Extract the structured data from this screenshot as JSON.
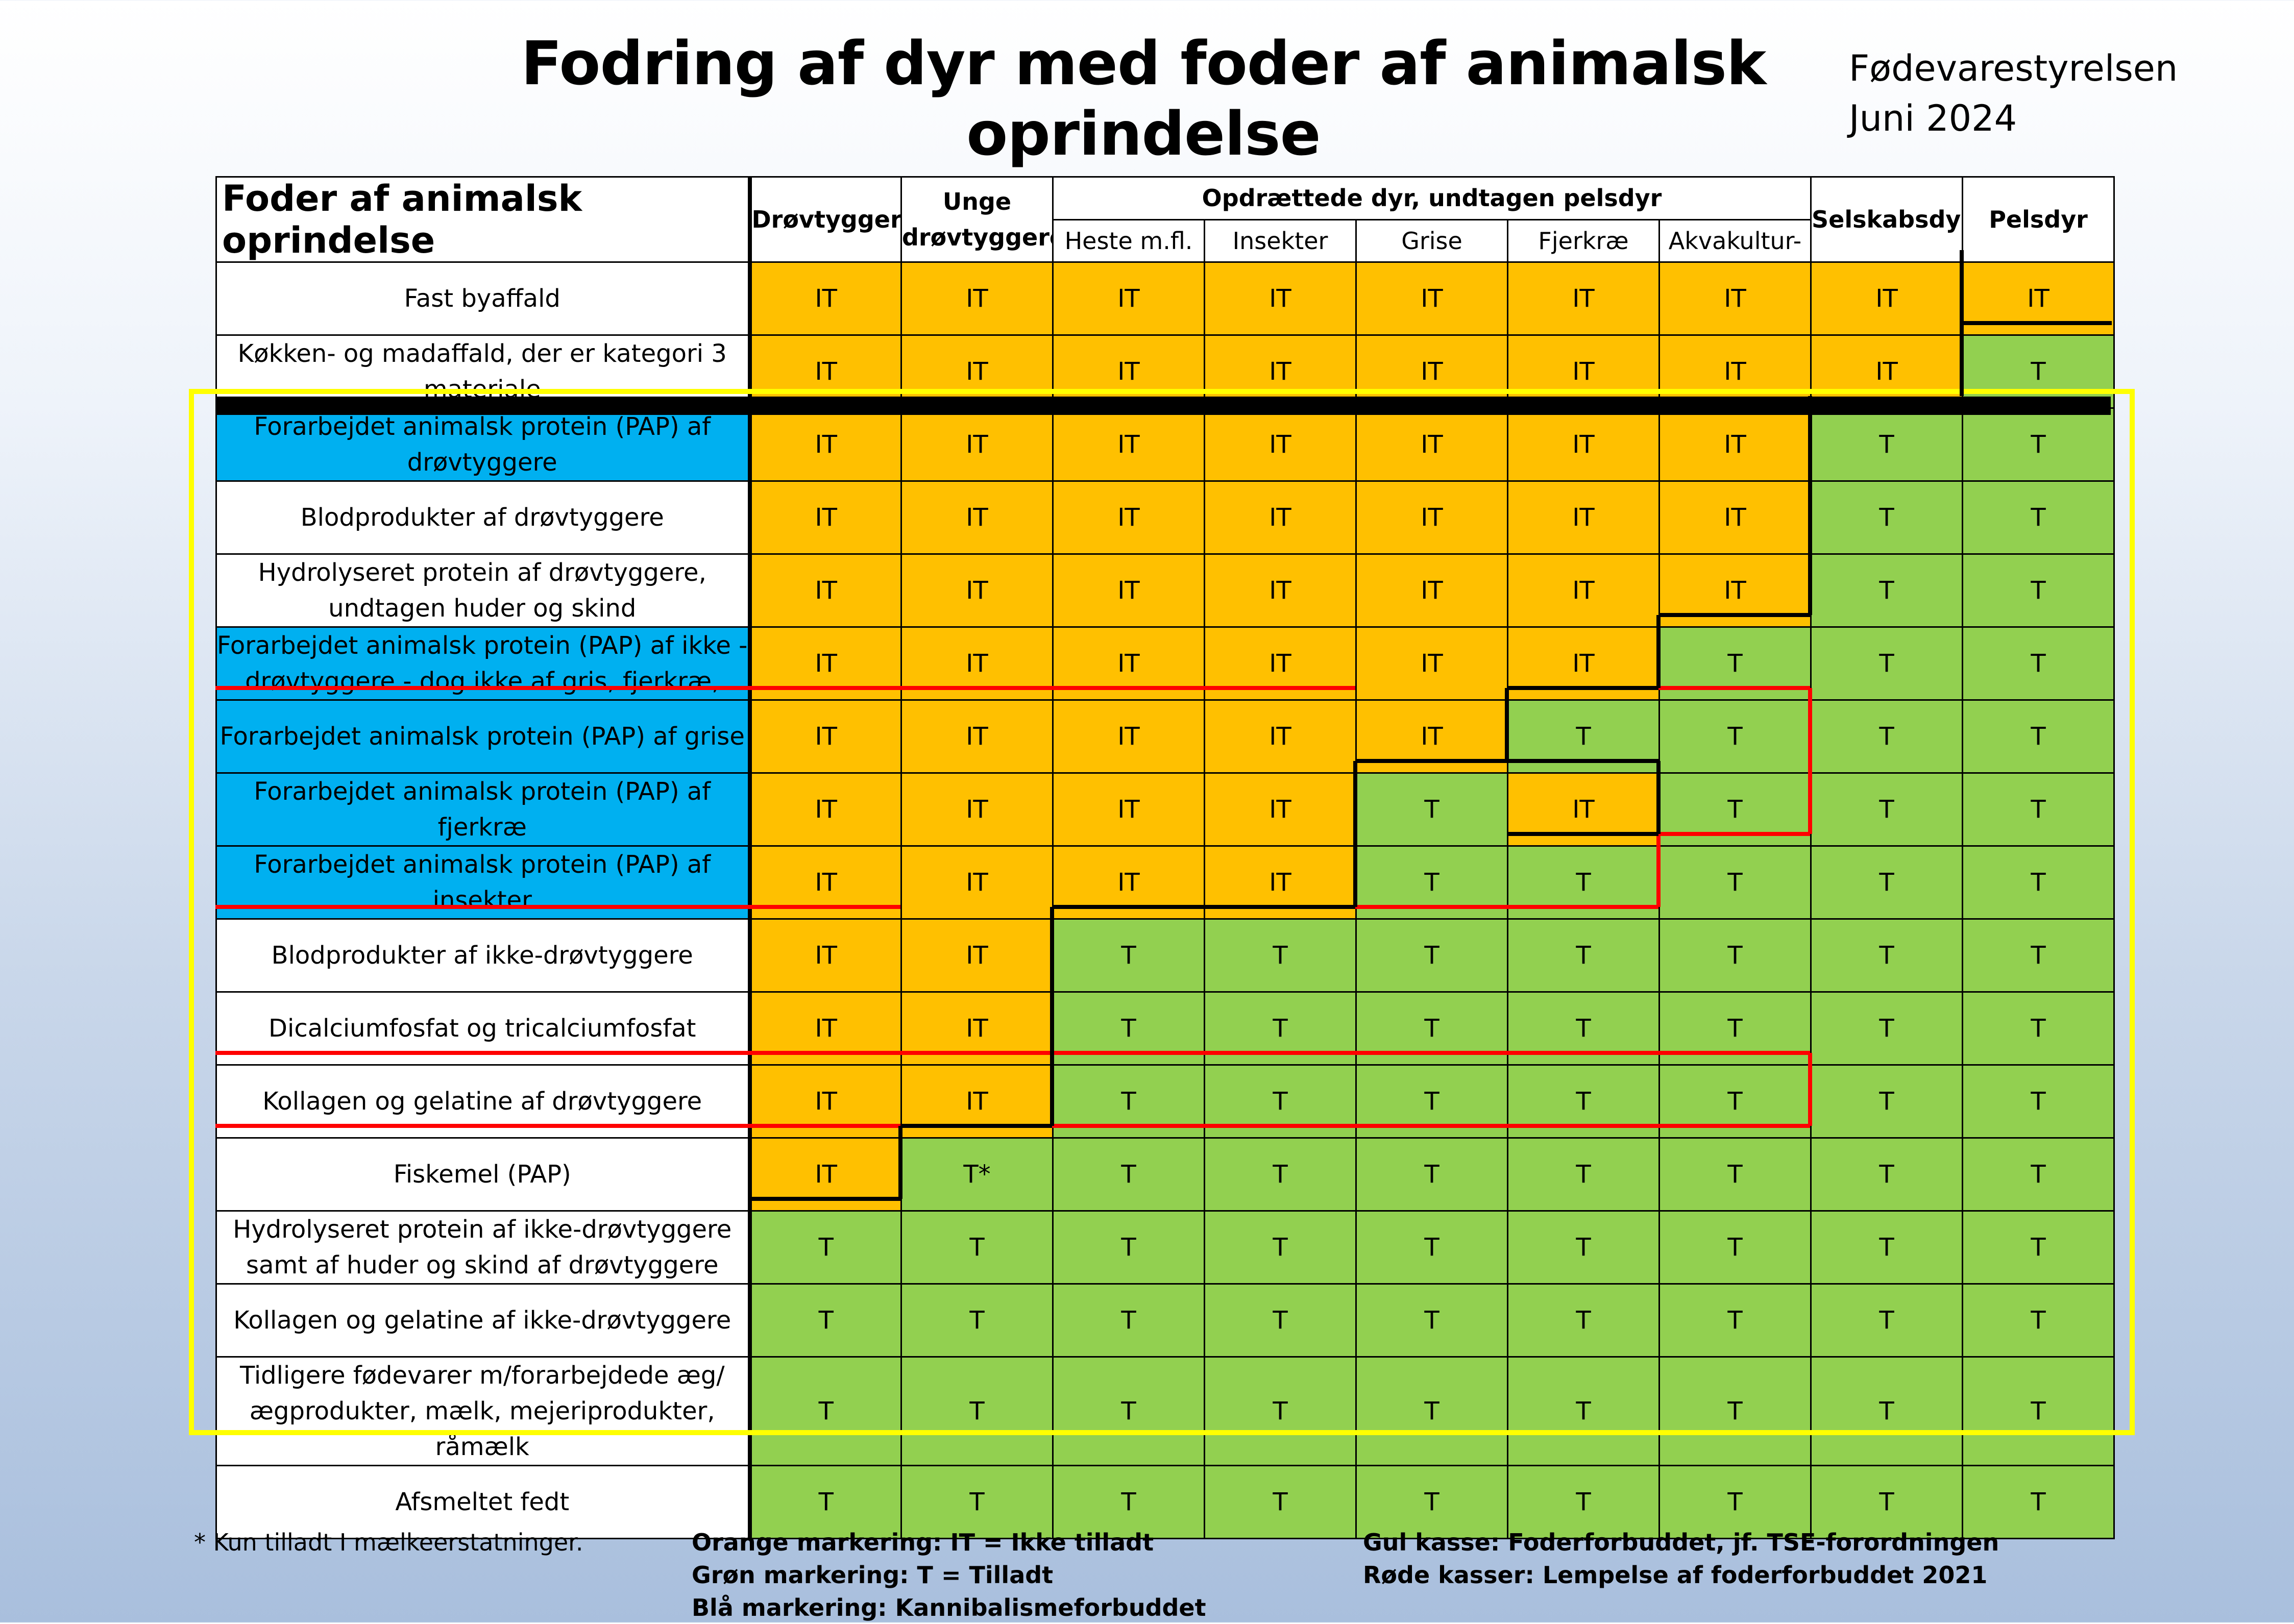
{
  "title": "Fodring af dyr med foder af animalsk oprindelse",
  "organization": "Fødevarestyrelsen",
  "date": "Juni 2024",
  "colors": {
    "orange": "#ffc000",
    "green": "#92d050",
    "blue": "#00b0f0",
    "yellow": "#ffff00",
    "red": "#ff0000"
  },
  "header": {
    "corner": "Foder af animalsk oprindelse",
    "group_label": "Opdrættede dyr, undtagen pelsdyr",
    "columns": [
      "Drøvtyggere",
      "Unge drøvtyggere",
      "Heste m.fl.",
      "Insekter",
      "Grise",
      "Fjerkræ",
      "Akvakultur-",
      "Selskabsdyr",
      "Pelsdyr"
    ]
  },
  "rows": [
    {
      "label": "Fast byaffald",
      "blue": false,
      "cells": [
        "IT",
        "IT",
        "IT",
        "IT",
        "IT",
        "IT",
        "IT",
        "IT",
        "IT"
      ]
    },
    {
      "label": "Køkken- og madaffald, der er kategori 3 materiale",
      "blue": false,
      "cells": [
        "IT",
        "IT",
        "IT",
        "IT",
        "IT",
        "IT",
        "IT",
        "IT",
        "T"
      ]
    },
    {
      "label": "Forarbejdet animalsk protein (PAP) af drøvtyggere",
      "blue": true,
      "cells": [
        "IT",
        "IT",
        "IT",
        "IT",
        "IT",
        "IT",
        "IT",
        "T",
        "T"
      ]
    },
    {
      "label": "Blodprodukter af drøvtyggere",
      "blue": false,
      "cells": [
        "IT",
        "IT",
        "IT",
        "IT",
        "IT",
        "IT",
        "IT",
        "T",
        "T"
      ]
    },
    {
      "label": "Hydrolyseret protein af drøvtyggere, undtagen huder og skind",
      "blue": false,
      "cells": [
        "IT",
        "IT",
        "IT",
        "IT",
        "IT",
        "IT",
        "IT",
        "T",
        "T"
      ]
    },
    {
      "label": "Forarbejdet animalsk protein (PAP) af ikke -drøvtyggere - dog ikke af gris, fjerkræ,",
      "blue": true,
      "cells": [
        "IT",
        "IT",
        "IT",
        "IT",
        "IT",
        "IT",
        "T",
        "T",
        "T"
      ]
    },
    {
      "label": "Forarbejdet animalsk protein (PAP) af grise",
      "blue": true,
      "cells": [
        "IT",
        "IT",
        "IT",
        "IT",
        "IT",
        "T",
        "T",
        "T",
        "T"
      ]
    },
    {
      "label": "Forarbejdet animalsk protein (PAP) af fjerkræ",
      "blue": true,
      "cells": [
        "IT",
        "IT",
        "IT",
        "IT",
        "T",
        "IT",
        "T",
        "T",
        "T"
      ]
    },
    {
      "label": "Forarbejdet animalsk protein (PAP) af insekter",
      "blue": true,
      "cells": [
        "IT",
        "IT",
        "IT",
        "IT",
        "T",
        "T",
        "T",
        "T",
        "T"
      ]
    },
    {
      "label": "Blodprodukter af ikke-drøvtyggere",
      "blue": false,
      "cells": [
        "IT",
        "IT",
        "T",
        "T",
        "T",
        "T",
        "T",
        "T",
        "T"
      ]
    },
    {
      "label": "Dicalciumfosfat og tricalciumfosfat",
      "blue": false,
      "cells": [
        "IT",
        "IT",
        "T",
        "T",
        "T",
        "T",
        "T",
        "T",
        "T"
      ]
    },
    {
      "label": "Kollagen og gelatine af drøvtyggere",
      "blue": false,
      "cells": [
        "IT",
        "IT",
        "T",
        "T",
        "T",
        "T",
        "T",
        "T",
        "T"
      ]
    },
    {
      "label": "Fiskemel (PAP)",
      "blue": false,
      "cells": [
        "IT",
        "T*",
        "T",
        "T",
        "T",
        "T",
        "T",
        "T",
        "T"
      ]
    },
    {
      "label": "Hydrolyseret protein af ikke-drøvtyggere samt af huder og skind af drøvtyggere",
      "blue": false,
      "cells": [
        "T",
        "T",
        "T",
        "T",
        "T",
        "T",
        "T",
        "T",
        "T"
      ]
    },
    {
      "label": "Kollagen og gelatine af ikke-drøvtyggere",
      "blue": false,
      "cells": [
        "T",
        "T",
        "T",
        "T",
        "T",
        "T",
        "T",
        "T",
        "T"
      ]
    },
    {
      "label": "Tidligere fødevarer m/forarbejdede æg/ ægprodukter, mælk, mejeriprodukter, råmælk",
      "blue": false,
      "cells": [
        "T",
        "T",
        "T",
        "T",
        "T",
        "T",
        "T",
        "T",
        "T"
      ]
    },
    {
      "label": "Afsmeltet fedt",
      "blue": false,
      "cells": [
        "T",
        "T",
        "T",
        "T",
        "T",
        "T",
        "T",
        "T",
        "T"
      ]
    }
  ],
  "footnote": "* Kun tilladt I mælkeerstatninger.",
  "legend_left": [
    "Orange markering: IT = Ikke tilladt",
    "Grøn markering: T = Tilladt",
    "Blå markering: Kannibalismeforbuddet"
  ],
  "legend_right": [
    "Gul kasse: Foderforbuddet, jf. TSE-forordningen",
    "Røde kasser: Lempelse af foderforbuddet 2021"
  ]
}
